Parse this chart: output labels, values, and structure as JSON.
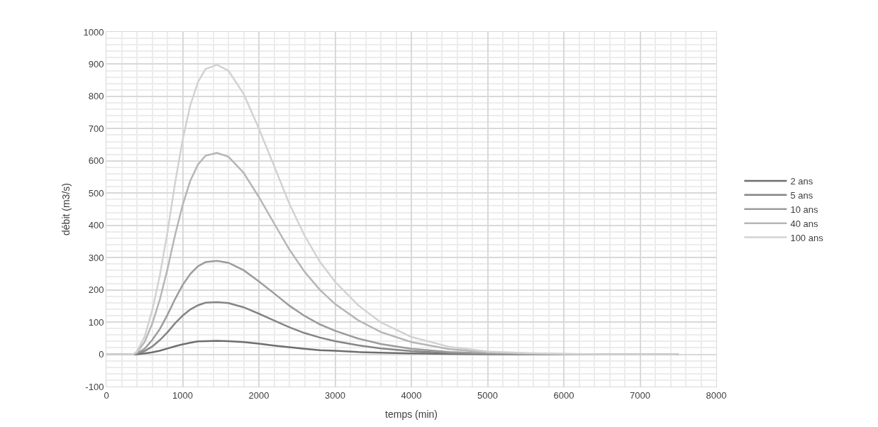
{
  "chart_data": {
    "type": "line",
    "xlabel": "temps (min)",
    "ylabel": "débit (m3/s)",
    "x": [
      0,
      350,
      400,
      500,
      600,
      700,
      800,
      900,
      1000,
      1100,
      1200,
      1300,
      1450,
      1600,
      1800,
      2000,
      2200,
      2400,
      2600,
      2800,
      3000,
      3300,
      3600,
      4000,
      4500,
      5000,
      5500,
      6000,
      6500,
      7000,
      7500
    ],
    "series": [
      {
        "name": "2 ans",
        "color": "#6e6e6e",
        "values": [
          0,
          0,
          0,
          3,
          6,
          11,
          18,
          25,
          31,
          36,
          40,
          41,
          42,
          41,
          38,
          33,
          27,
          22,
          17,
          13,
          11,
          7,
          5,
          3,
          1,
          0,
          0,
          0,
          0,
          0,
          0
        ]
      },
      {
        "name": "5 ans",
        "color": "#858585",
        "values": [
          0,
          0,
          2,
          10,
          24,
          44,
          68,
          96,
          120,
          139,
          152,
          160,
          162,
          159,
          146,
          126,
          105,
          84,
          66,
          52,
          41,
          28,
          18,
          10,
          4,
          2,
          1,
          0,
          0,
          0,
          0
        ]
      },
      {
        "name": "10 ans",
        "color": "#9c9c9c",
        "values": [
          0,
          0,
          3,
          17,
          44,
          78,
          122,
          171,
          215,
          249,
          273,
          286,
          290,
          284,
          261,
          226,
          189,
          151,
          119,
          93,
          73,
          49,
          32,
          17,
          7,
          3,
          1,
          0,
          0,
          0,
          0
        ]
      },
      {
        "name": "40 ans",
        "color": "#b6b6b6",
        "values": [
          0,
          0,
          6,
          38,
          94,
          169,
          263,
          369,
          463,
          538,
          588,
          616,
          625,
          613,
          563,
          488,
          406,
          325,
          256,
          200,
          156,
          106,
          69,
          38,
          16,
          6,
          3,
          1,
          0,
          0,
          0
        ]
      },
      {
        "name": "100 ans",
        "color": "#d2d2d2",
        "values": [
          0,
          0,
          9,
          54,
          135,
          243,
          377,
          530,
          665,
          772,
          844,
          885,
          898,
          880,
          808,
          700,
          584,
          467,
          368,
          287,
          225,
          153,
          99,
          54,
          23,
          9,
          4,
          1,
          0,
          0,
          0
        ]
      }
    ],
    "xlim": [
      0,
      8000
    ],
    "xticks": [
      0,
      1000,
      2000,
      3000,
      4000,
      5000,
      6000,
      7000,
      8000
    ],
    "ylim": [
      -100,
      1000
    ],
    "yticks": [
      -100,
      0,
      100,
      200,
      300,
      400,
      500,
      600,
      700,
      800,
      900,
      1000
    ],
    "grid": true,
    "legend": "right",
    "marker": "none",
    "line_style": "solid"
  }
}
